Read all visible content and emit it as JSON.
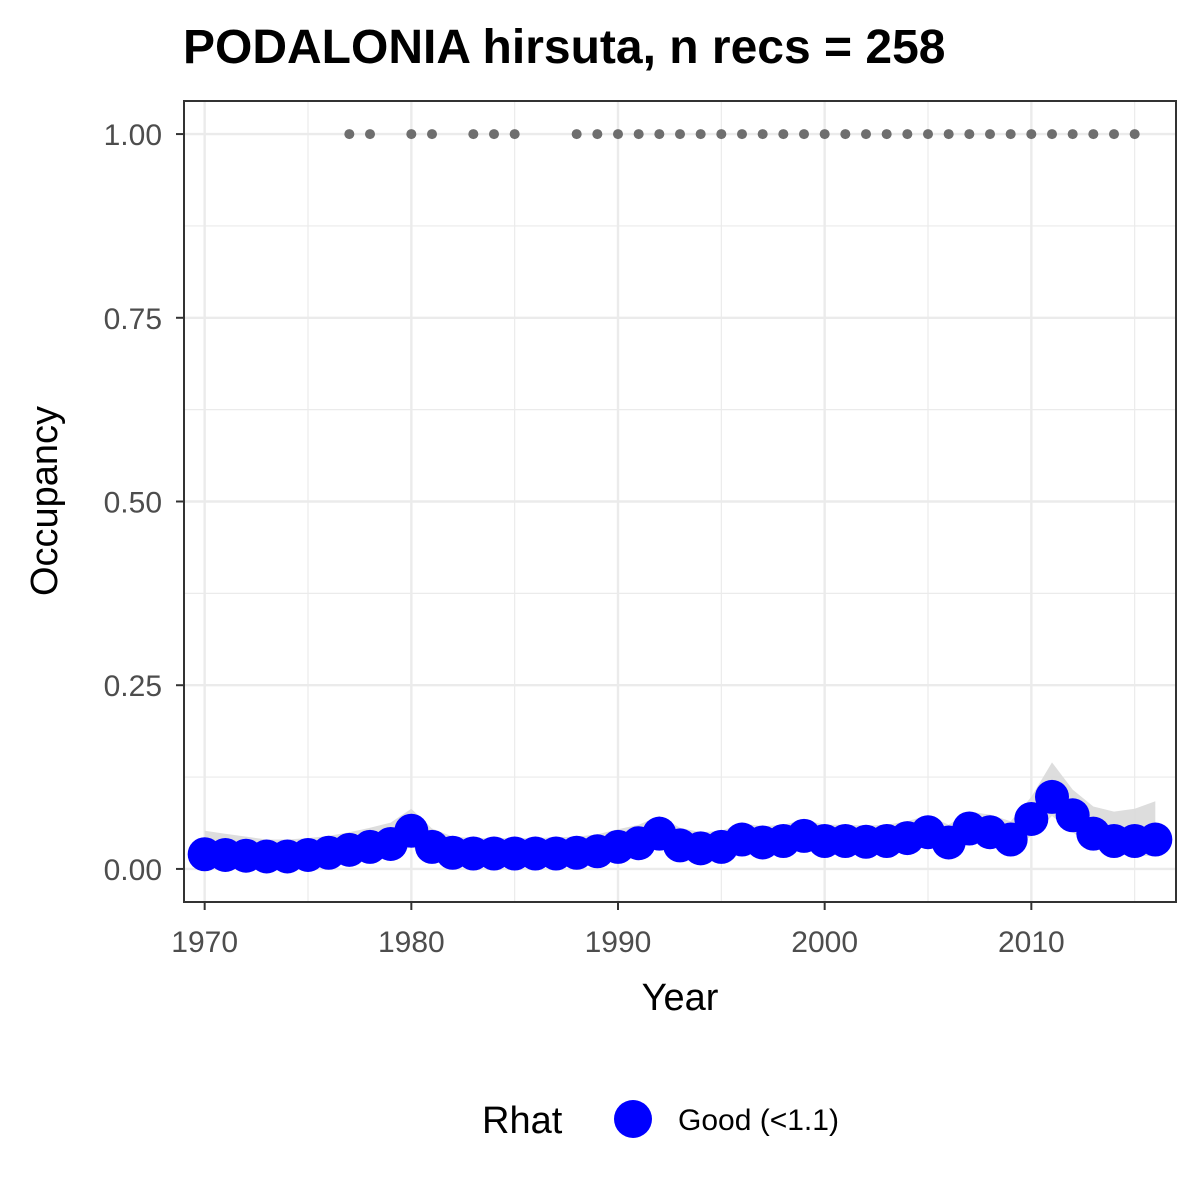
{
  "chart_data": {
    "type": "line",
    "title": "PODALONIA hirsuta, n recs = 258",
    "xlabel": "Year",
    "ylabel": "Occupancy",
    "xlim": [
      1969,
      2017
    ],
    "ylim": [
      -0.045,
      1.045
    ],
    "x_ticks": [
      1970,
      1980,
      1990,
      2000,
      2010
    ],
    "x_tick_labels": [
      "1970",
      "1980",
      "1990",
      "2000",
      "2010"
    ],
    "y_ticks": [
      0,
      0.25,
      0.5,
      0.75,
      1
    ],
    "y_tick_labels": [
      "0.00",
      "0.25",
      "0.50",
      "0.75",
      "1.00"
    ],
    "grid": true,
    "legend_position": "bottom",
    "legend": {
      "title": "Rhat",
      "entries": [
        {
          "label": "Good (<1.1)",
          "color": "#0000ff"
        }
      ]
    },
    "colors": {
      "occupancy": "#0000ff",
      "ci_ribbon": "#d9d9d9",
      "records": "#6e6e6e",
      "grid": "#ebebeb",
      "border": "#333333"
    },
    "series": [
      {
        "kind": "occupancy",
        "x": [
          1970,
          1971,
          1972,
          1973,
          1974,
          1975,
          1976,
          1977,
          1978,
          1979,
          1980,
          1981,
          1982,
          1983,
          1984,
          1985,
          1986,
          1987,
          1988,
          1989,
          1990,
          1991,
          1992,
          1993,
          1994,
          1995,
          1996,
          1997,
          1998,
          1999,
          2000,
          2001,
          2002,
          2003,
          2004,
          2005,
          2006,
          2007,
          2008,
          2009,
          2010,
          2011,
          2012,
          2013,
          2014,
          2015,
          2016
        ],
        "y": [
          0.02,
          0.019,
          0.018,
          0.017,
          0.017,
          0.019,
          0.022,
          0.026,
          0.03,
          0.034,
          0.052,
          0.03,
          0.022,
          0.021,
          0.021,
          0.021,
          0.021,
          0.021,
          0.022,
          0.024,
          0.03,
          0.035,
          0.048,
          0.032,
          0.028,
          0.03,
          0.04,
          0.036,
          0.038,
          0.045,
          0.038,
          0.038,
          0.037,
          0.038,
          0.042,
          0.05,
          0.036,
          0.055,
          0.05,
          0.04,
          0.068,
          0.098,
          0.073,
          0.048,
          0.038,
          0.038,
          0.04
        ]
      },
      {
        "kind": "ci_lower",
        "x": [
          1970,
          1971,
          1972,
          1973,
          1974,
          1975,
          1976,
          1977,
          1978,
          1979,
          1980,
          1981,
          1982,
          1983,
          1984,
          1985,
          1986,
          1987,
          1988,
          1989,
          1990,
          1991,
          1992,
          1993,
          1994,
          1995,
          1996,
          1997,
          1998,
          1999,
          2000,
          2001,
          2002,
          2003,
          2004,
          2005,
          2006,
          2007,
          2008,
          2009,
          2010,
          2011,
          2012,
          2013,
          2014,
          2015,
          2016
        ],
        "y": [
          0.008,
          0.008,
          0.007,
          0.007,
          0.007,
          0.008,
          0.01,
          0.012,
          0.015,
          0.018,
          0.03,
          0.016,
          0.01,
          0.01,
          0.01,
          0.01,
          0.01,
          0.01,
          0.011,
          0.012,
          0.016,
          0.02,
          0.03,
          0.018,
          0.015,
          0.016,
          0.024,
          0.021,
          0.022,
          0.028,
          0.023,
          0.023,
          0.022,
          0.023,
          0.026,
          0.032,
          0.021,
          0.036,
          0.032,
          0.024,
          0.045,
          0.072,
          0.05,
          0.028,
          0.02,
          0.018,
          0.018
        ]
      },
      {
        "kind": "ci_upper",
        "x": [
          1970,
          1971,
          1972,
          1973,
          1974,
          1975,
          1976,
          1977,
          1978,
          1979,
          1980,
          1981,
          1982,
          1983,
          1984,
          1985,
          1986,
          1987,
          1988,
          1989,
          1990,
          1991,
          1992,
          1993,
          1994,
          1995,
          1996,
          1997,
          1998,
          1999,
          2000,
          2001,
          2002,
          2003,
          2004,
          2005,
          2006,
          2007,
          2008,
          2009,
          2010,
          2011,
          2012,
          2013,
          2014,
          2015,
          2016
        ],
        "y": [
          0.052,
          0.048,
          0.044,
          0.04,
          0.04,
          0.042,
          0.045,
          0.05,
          0.056,
          0.063,
          0.082,
          0.055,
          0.044,
          0.042,
          0.042,
          0.042,
          0.042,
          0.043,
          0.044,
          0.047,
          0.054,
          0.06,
          0.072,
          0.056,
          0.05,
          0.052,
          0.062,
          0.058,
          0.06,
          0.067,
          0.06,
          0.06,
          0.059,
          0.06,
          0.065,
          0.073,
          0.06,
          0.078,
          0.074,
          0.065,
          0.098,
          0.145,
          0.108,
          0.085,
          0.078,
          0.082,
          0.092
        ]
      },
      {
        "kind": "records",
        "x": [
          1977,
          1978,
          1980,
          1981,
          1983,
          1984,
          1985,
          1988,
          1989,
          1990,
          1991,
          1992,
          1993,
          1994,
          1995,
          1996,
          1997,
          1998,
          1999,
          2000,
          2001,
          2002,
          2003,
          2004,
          2005,
          2006,
          2007,
          2008,
          2009,
          2010,
          2011,
          2012,
          2013,
          2014,
          2015
        ],
        "y": [
          1,
          1,
          1,
          1,
          1,
          1,
          1,
          1,
          1,
          1,
          1,
          1,
          1,
          1,
          1,
          1,
          1,
          1,
          1,
          1,
          1,
          1,
          1,
          1,
          1,
          1,
          1,
          1,
          1,
          1,
          1,
          1,
          1,
          1,
          1
        ]
      }
    ]
  }
}
